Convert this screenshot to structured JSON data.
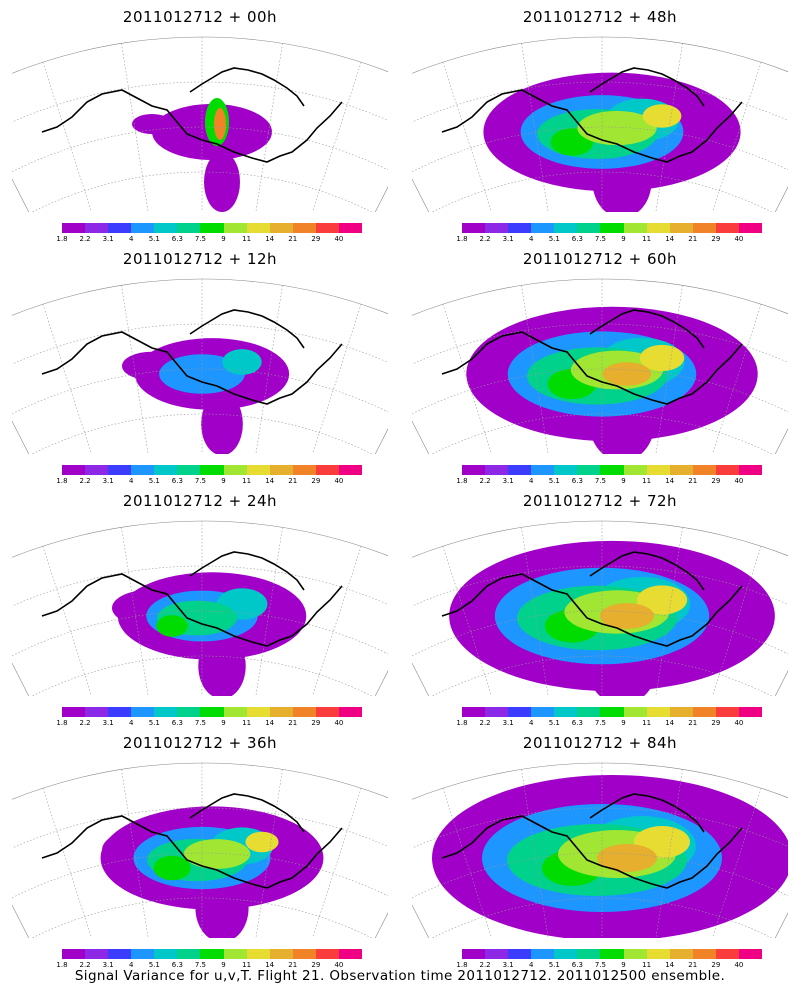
{
  "panels": [
    {
      "title": "2011012712 + 00h",
      "lead": 0
    },
    {
      "title": "2011012712 + 48h",
      "lead": 48
    },
    {
      "title": "2011012712 + 12h",
      "lead": 12
    },
    {
      "title": "2011012712 + 60h",
      "lead": 60
    },
    {
      "title": "2011012712 + 24h",
      "lead": 24
    },
    {
      "title": "2011012712 + 72h",
      "lead": 72
    },
    {
      "title": "2011012712 + 36h",
      "lead": 36
    },
    {
      "title": "2011012712 + 84h",
      "lead": 84
    }
  ],
  "colorbar": {
    "labels": [
      "1.8",
      "2.2",
      "3.1",
      "4",
      "5.1",
      "6.3",
      "7.5",
      "9",
      "11",
      "14",
      "21",
      "29",
      "40"
    ],
    "colors": [
      "#a000c8",
      "#8c28e6",
      "#3c3cff",
      "#1e96ff",
      "#00c8c8",
      "#00d28c",
      "#00dc00",
      "#a0e632",
      "#e6dc32",
      "#e6af2d",
      "#f08228",
      "#fa3c3c",
      "#f00082"
    ]
  },
  "footer": "Signal Variance for u,v,T. Flight 21. Observation time 2011012712. 2011012500 ensemble."
}
